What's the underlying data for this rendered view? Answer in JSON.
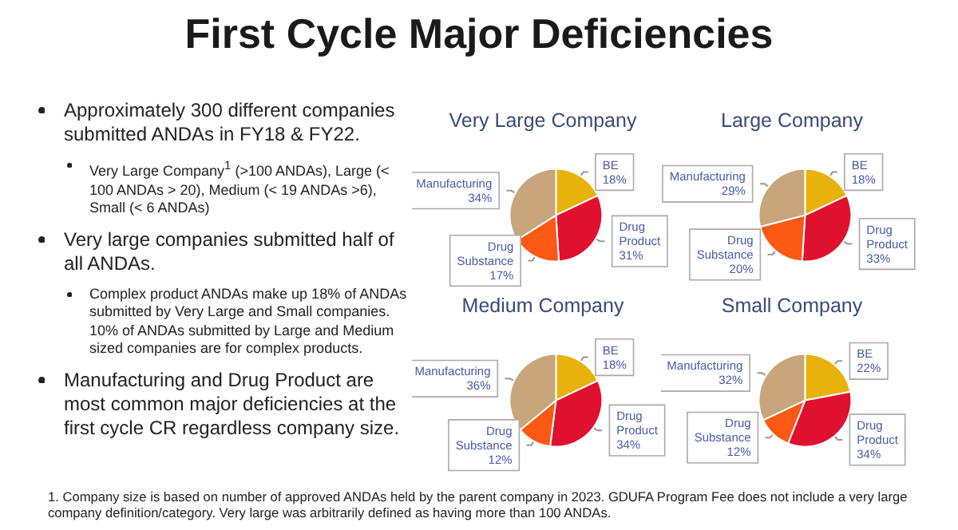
{
  "chart_data": [
    {
      "type": "other",
      "title": "First Cycle Major Deficiencies",
      "annotations": [
        "Approximately 300 different companies submitted ANDAs in FY18 & FY22.",
        "Very Large Company$^{1}$ (>100 ANDAs), Large (< 100 ANDAs > 20), Medium (< 19 ANDAs >6), Small (< 6 ANDAs)",
        "Very large companies submitted half of all ANDAs.",
        "Complex product ANDAs make up 18% of ANDAs submitted by Very Large and Small companies. 10% of ANDAs submitted by Large and Medium sized companies are for complex products.",
        "Manufacturing and Drug Product are most common major deficiencies at the first cycle CR regardless company size.",
        "1.  Company size is based on number of approved ANDAs held by the parent company in 2023. GDUFA Program Fee does not include a very large company definition/category. Very large was arbitrarily defined as having more than 100 ANDAs."
      ]
    },
    {
      "type": "pie",
      "title": "Very Large Company",
      "categories": [
        "BE",
        "Drug Product",
        "Drug Substance",
        "Manufacturing"
      ],
      "values": [
        18,
        31,
        17,
        34
      ],
      "value_labels": [
        "18%",
        "31%",
        "17%",
        "34%"
      ],
      "colors": [
        "#e8b20c",
        "#e0102f",
        "#fa5a14",
        "#c8a57a"
      ]
    },
    {
      "type": "pie",
      "title": "Large Company",
      "categories": [
        "BE",
        "Drug Product",
        "Drug Substance",
        "Manufacturing"
      ],
      "values": [
        18,
        33,
        20,
        29
      ],
      "value_labels": [
        "18%",
        "33%",
        "20%",
        "29%"
      ],
      "colors": [
        "#e8b20c",
        "#e0102f",
        "#fa5a14",
        "#c8a57a"
      ]
    },
    {
      "type": "pie",
      "title": "Medium Company",
      "categories": [
        "BE",
        "Drug Product",
        "Drug Substance",
        "Manufacturing"
      ],
      "values": [
        18,
        34,
        12,
        36
      ],
      "value_labels": [
        "18%",
        "34%",
        "12%",
        "36%"
      ],
      "colors": [
        "#e8b20c",
        "#e0102f",
        "#fa5a14",
        "#c8a57a"
      ]
    },
    {
      "type": "pie",
      "title": "Small Company",
      "categories": [
        "BE",
        "Drug Product",
        "Drug Substance",
        "Manufacturing"
      ],
      "values": [
        22,
        34,
        12,
        32
      ],
      "value_labels": [
        "22%",
        "34%",
        "12%",
        "32%"
      ],
      "colors": [
        "#e8b20c",
        "#e0102f",
        "#fa5a14",
        "#c8a57a"
      ]
    }
  ]
}
